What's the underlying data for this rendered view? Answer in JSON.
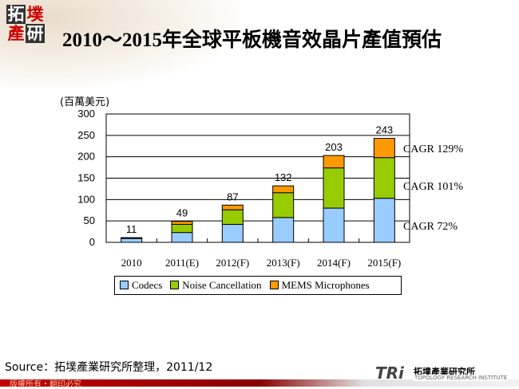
{
  "header": {
    "title": "2010～2015年全球平板機音效晶片產值預估",
    "logo_text": [
      "拓",
      "墣",
      "產",
      "研"
    ]
  },
  "chart_data": {
    "type": "bar",
    "stacked": true,
    "title": "2010～2015年全球平板機音效晶片產值預估",
    "ylabel": "(百萬美元)",
    "ylim": [
      0,
      300
    ],
    "yticks": [
      0,
      50,
      100,
      150,
      200,
      250,
      300
    ],
    "grid": true,
    "categories": [
      "2010",
      "2011(E)",
      "2012(F)",
      "2013(F)",
      "2014(F)",
      "2015(F)"
    ],
    "series": [
      {
        "name": "Codecs",
        "color": "#99ccff",
        "values": [
          9,
          23,
          42,
          58,
          80,
          103
        ]
      },
      {
        "name": "Noise Cancellation",
        "color": "#99cc00",
        "values": [
          1,
          19,
          34,
          58,
          94,
          95
        ]
      },
      {
        "name": "MEMS Microphones",
        "color": "#ff9900",
        "values": [
          1,
          7,
          11,
          16,
          29,
          45
        ]
      }
    ],
    "totals": [
      11,
      49,
      87,
      132,
      203,
      243
    ],
    "annotations": [
      "CAGR 129%",
      "CAGR 101%",
      "CAGR 72%"
    ],
    "legend": "bottom"
  },
  "source": "Source：拓墣產業研究所整理，2011/12",
  "footer": {
    "copyright": "版權所有・翻印必究",
    "org": "拓墣產業研究所",
    "org_en": "TOPOLOGY RESEARCH INSTITUTE",
    "brand": "TRi"
  }
}
